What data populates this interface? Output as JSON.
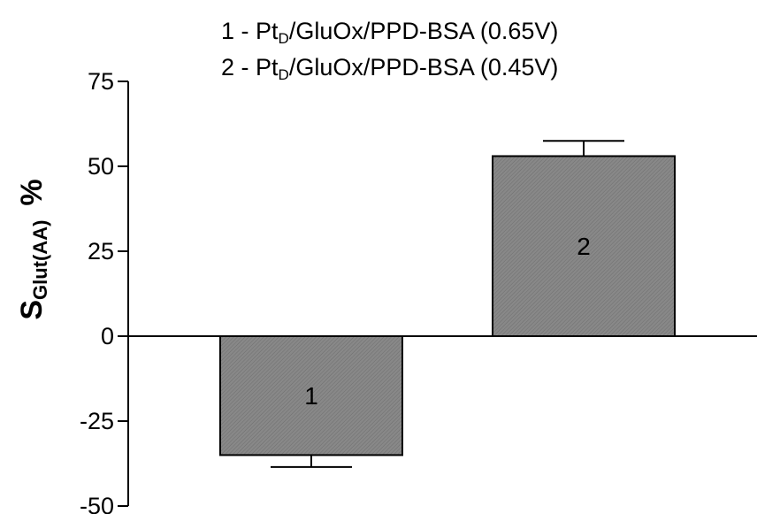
{
  "chart_data": {
    "type": "bar",
    "title": "",
    "legend": [
      {
        "num": "1 - Pt",
        "sub": "D",
        "rest": "/GluOx/PPD-BSA (0.65V)"
      },
      {
        "num": "2 - Pt",
        "sub": "D",
        "rest": "/GluOx/PPD-BSA (0.45V)"
      }
    ],
    "ylabel": {
      "main": "S",
      "sub": "Glut(AA)",
      "unit": "%"
    },
    "xlabel": "",
    "categories": [
      "1",
      "2"
    ],
    "values": [
      -35,
      53
    ],
    "errors": [
      3.5,
      4.5
    ],
    "ylim": [
      -50,
      75
    ],
    "yticks": [
      -50,
      -25,
      0,
      25,
      50,
      75
    ],
    "bar_color": "#858585"
  }
}
